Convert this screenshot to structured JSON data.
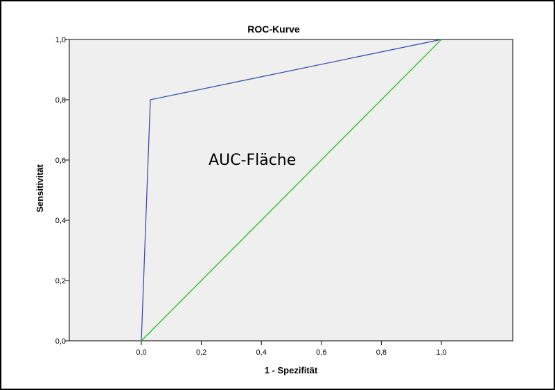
{
  "chart_data": {
    "type": "line",
    "title": "ROC-Kurve",
    "xlabel": "1 - Spezifität",
    "ylabel": "Sensitivität",
    "xlim": [
      0,
      1
    ],
    "ylim": [
      0,
      1
    ],
    "x_ticks": [
      "0,0",
      "0,2",
      "0,4",
      "0,6",
      "0,8",
      "1,0"
    ],
    "y_ticks": [
      "0,0",
      "0,2",
      "0,4",
      "0,6",
      "0,8",
      "1,0"
    ],
    "grid": false,
    "annotation": "AUC-Fläche",
    "series": [
      {
        "color": "#3a4fae",
        "x": [
          0,
          0.03,
          1.0
        ],
        "y": [
          0,
          0.8,
          1.0
        ]
      },
      {
        "color": "#22bb22",
        "x": [
          0,
          1.0
        ],
        "y": [
          0,
          1.0
        ]
      }
    ],
    "plot_background": "#efefef"
  }
}
